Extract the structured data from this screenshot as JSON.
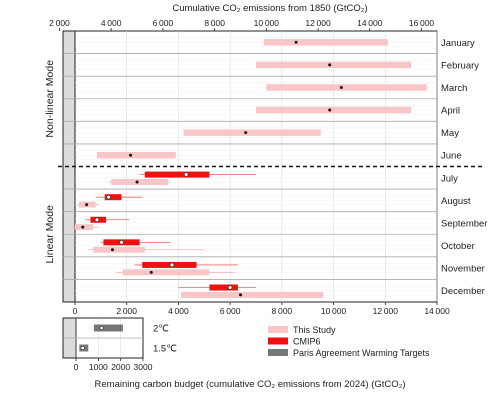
{
  "chart_data": {
    "type": "box-range",
    "title_top": "Cumulative CO₂ emissions from 1850 (GtCO₂)",
    "xlabel_bottom": "Remaining carbon budget (cumulative CO₂ emissions from 2024) (GtCO₂)",
    "top_axis": {
      "range": [
        2000,
        16000
      ],
      "ticks": [
        2000,
        4000,
        6000,
        8000,
        10000,
        12000,
        14000,
        16000
      ]
    },
    "bottom_axis": {
      "range": [
        0,
        14000
      ],
      "ticks": [
        0,
        2000,
        4000,
        6000,
        8000,
        10000,
        12000,
        14000
      ]
    },
    "offset_1850_to_2024": 2600,
    "modes": [
      {
        "label": "Non-linear Mode",
        "months": [
          "January",
          "February",
          "March",
          "April",
          "May",
          "June"
        ]
      },
      {
        "label": "Linear Mode",
        "months": [
          "July",
          "August",
          "September",
          "October",
          "November",
          "December"
        ]
      }
    ],
    "months": [
      {
        "name": "January",
        "this_study": {
          "whisker": [
            7300,
            12100
          ],
          "box": [
            7300,
            12100
          ],
          "median": 8550
        }
      },
      {
        "name": "February",
        "this_study": {
          "whisker": [
            7000,
            13000
          ],
          "box": [
            7000,
            13000
          ],
          "median": 9850
        }
      },
      {
        "name": "March",
        "this_study": {
          "whisker": [
            7400,
            13600
          ],
          "box": [
            7400,
            13600
          ],
          "median": 10300
        }
      },
      {
        "name": "April",
        "this_study": {
          "whisker": [
            7000,
            13000
          ],
          "box": [
            7000,
            13000
          ],
          "median": 9850
        }
      },
      {
        "name": "May",
        "this_study": {
          "whisker": [
            4200,
            9500
          ],
          "box": [
            4200,
            9500
          ],
          "median": 6600
        }
      },
      {
        "name": "June",
        "this_study": {
          "whisker": [
            850,
            3900
          ],
          "box": [
            850,
            3900
          ],
          "median": 2150
        }
      },
      {
        "name": "July",
        "cmip6": {
          "whisker": [
            2500,
            7000
          ],
          "box": [
            2700,
            5200
          ],
          "median": 4300
        },
        "this_study": {
          "whisker": [
            1300,
            3700
          ],
          "box": [
            1400,
            3600
          ],
          "median": 2400
        }
      },
      {
        "name": "August",
        "cmip6": {
          "whisker": [
            800,
            2600
          ],
          "box": [
            1150,
            1800
          ],
          "median": 1300
        },
        "this_study": {
          "whisker": [
            100,
            900
          ],
          "box": [
            150,
            800
          ],
          "median": 450
        }
      },
      {
        "name": "September",
        "cmip6": {
          "whisker": [
            400,
            2100
          ],
          "box": [
            600,
            1200
          ],
          "median": 850
        },
        "this_study": {
          "whisker": [
            -100,
            900
          ],
          "box": [
            0,
            700
          ],
          "median": 300
        }
      },
      {
        "name": "October",
        "cmip6": {
          "whisker": [
            1000,
            3700
          ],
          "box": [
            1100,
            2500
          ],
          "median": 1800
        },
        "this_study": {
          "whisker": [
            500,
            5000
          ],
          "box": [
            700,
            2700
          ],
          "median": 1450
        }
      },
      {
        "name": "November",
        "cmip6": {
          "whisker": [
            2300,
            6300
          ],
          "box": [
            2600,
            4700
          ],
          "median": 3750
        },
        "this_study": {
          "whisker": [
            1600,
            6200
          ],
          "box": [
            1850,
            5200
          ],
          "median": 2950
        }
      },
      {
        "name": "December",
        "cmip6": {
          "whisker": [
            4000,
            7000
          ],
          "box": [
            5200,
            6300
          ],
          "median": 6000
        },
        "this_study": {
          "whisker": [
            4100,
            9600
          ],
          "box": [
            4100,
            9600
          ],
          "median": 6400
        }
      }
    ],
    "paris_targets": {
      "axis": {
        "range": [
          -600,
          3000
        ],
        "ticks": [
          0,
          1000,
          2000,
          3000
        ]
      },
      "items": [
        {
          "label": "2℃",
          "box": [
            800,
            2100
          ],
          "median": 1150
        },
        {
          "label": "1.5℃",
          "box": [
            150,
            550
          ],
          "median": 300
        }
      ]
    },
    "legend": [
      {
        "label": "This Study",
        "color": "#f9c6c7"
      },
      {
        "label": "CMIP6",
        "color": "#ee1111"
      },
      {
        "label": "Paris Agreement Warming Targets",
        "color": "#777777"
      }
    ],
    "colors": {
      "this_study": "#f9c6c7",
      "cmip6": "#ee1111",
      "paris": "#777777",
      "grey_band": "#dcdcdc"
    }
  }
}
